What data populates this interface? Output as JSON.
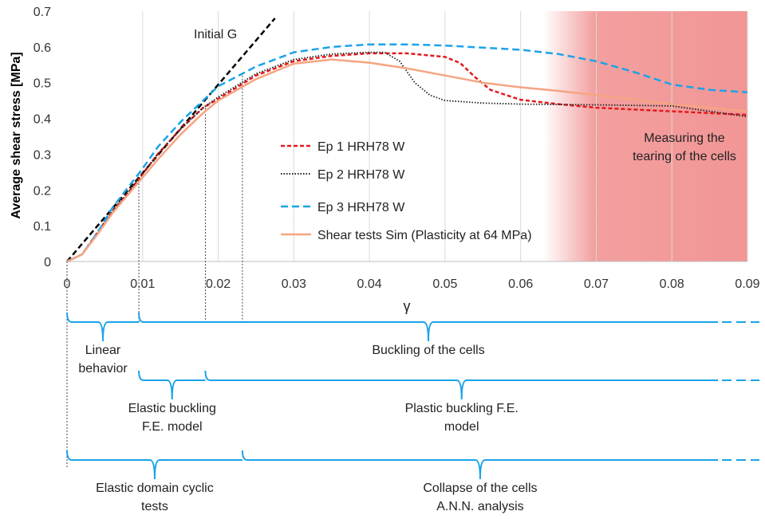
{
  "chart_data": {
    "type": "line",
    "title": "",
    "xlabel": "γ",
    "ylabel": "Average shear stress [MPa]",
    "xlim": [
      0,
      0.09
    ],
    "ylim": [
      0,
      0.7
    ],
    "xticks": [
      "0",
      "0.01",
      "0.02",
      "0.03",
      "0.04",
      "0.05",
      "0.06",
      "0.07",
      "0.08",
      "0.09"
    ],
    "yticks": [
      "0",
      "0.1",
      "0.2",
      "0.3",
      "0.4",
      "0.5",
      "0.6",
      "0.7"
    ],
    "grid": "vertical",
    "legend_position": "center",
    "series": [
      {
        "name": "Ep 1 HRH78 W",
        "color": "#e41a1c",
        "style": "dashed",
        "points": [
          [
            0,
            0
          ],
          [
            0.002,
            0.02
          ],
          [
            0.004,
            0.08
          ],
          [
            0.006,
            0.14
          ],
          [
            0.008,
            0.19
          ],
          [
            0.01,
            0.245
          ],
          [
            0.012,
            0.3
          ],
          [
            0.015,
            0.37
          ],
          [
            0.018,
            0.43
          ],
          [
            0.02,
            0.455
          ],
          [
            0.025,
            0.52
          ],
          [
            0.03,
            0.56
          ],
          [
            0.035,
            0.575
          ],
          [
            0.04,
            0.582
          ],
          [
            0.045,
            0.582
          ],
          [
            0.05,
            0.572
          ],
          [
            0.052,
            0.555
          ],
          [
            0.054,
            0.515
          ],
          [
            0.056,
            0.48
          ],
          [
            0.06,
            0.452
          ],
          [
            0.065,
            0.44
          ],
          [
            0.07,
            0.43
          ],
          [
            0.08,
            0.42
          ],
          [
            0.09,
            0.41
          ]
        ]
      },
      {
        "name": "Ep 2 HRH78 W",
        "color": "#222222",
        "style": "dotted",
        "points": [
          [
            0,
            0
          ],
          [
            0.002,
            0.02
          ],
          [
            0.004,
            0.08
          ],
          [
            0.006,
            0.14
          ],
          [
            0.008,
            0.19
          ],
          [
            0.01,
            0.245
          ],
          [
            0.012,
            0.3
          ],
          [
            0.015,
            0.37
          ],
          [
            0.018,
            0.43
          ],
          [
            0.02,
            0.46
          ],
          [
            0.025,
            0.525
          ],
          [
            0.03,
            0.565
          ],
          [
            0.035,
            0.58
          ],
          [
            0.04,
            0.585
          ],
          [
            0.042,
            0.585
          ],
          [
            0.044,
            0.56
          ],
          [
            0.046,
            0.5
          ],
          [
            0.048,
            0.465
          ],
          [
            0.05,
            0.45
          ],
          [
            0.055,
            0.443
          ],
          [
            0.06,
            0.44
          ],
          [
            0.07,
            0.438
          ],
          [
            0.08,
            0.435
          ],
          [
            0.09,
            0.405
          ]
        ]
      },
      {
        "name": "Ep 3 HRH78 W",
        "color": "#1aa3e8",
        "style": "longdash",
        "points": [
          [
            0,
            0
          ],
          [
            0.002,
            0.02
          ],
          [
            0.004,
            0.08
          ],
          [
            0.006,
            0.15
          ],
          [
            0.008,
            0.205
          ],
          [
            0.01,
            0.26
          ],
          [
            0.012,
            0.32
          ],
          [
            0.015,
            0.39
          ],
          [
            0.018,
            0.45
          ],
          [
            0.02,
            0.49
          ],
          [
            0.025,
            0.545
          ],
          [
            0.03,
            0.585
          ],
          [
            0.035,
            0.6
          ],
          [
            0.04,
            0.607
          ],
          [
            0.045,
            0.607
          ],
          [
            0.05,
            0.604
          ],
          [
            0.055,
            0.598
          ],
          [
            0.06,
            0.592
          ],
          [
            0.065,
            0.58
          ],
          [
            0.07,
            0.56
          ],
          [
            0.075,
            0.53
          ],
          [
            0.08,
            0.495
          ],
          [
            0.085,
            0.48
          ],
          [
            0.09,
            0.473
          ]
        ]
      },
      {
        "name": "Shear tests Sim (Plasticity at 64 MPa)",
        "color": "#f4a582",
        "style": "solid",
        "points": [
          [
            0,
            0
          ],
          [
            0.002,
            0.02
          ],
          [
            0.004,
            0.075
          ],
          [
            0.006,
            0.135
          ],
          [
            0.008,
            0.185
          ],
          [
            0.01,
            0.235
          ],
          [
            0.012,
            0.285
          ],
          [
            0.015,
            0.355
          ],
          [
            0.018,
            0.415
          ],
          [
            0.02,
            0.45
          ],
          [
            0.025,
            0.51
          ],
          [
            0.03,
            0.553
          ],
          [
            0.035,
            0.565
          ],
          [
            0.04,
            0.556
          ],
          [
            0.045,
            0.54
          ],
          [
            0.05,
            0.52
          ],
          [
            0.055,
            0.5
          ],
          [
            0.06,
            0.487
          ],
          [
            0.065,
            0.477
          ],
          [
            0.07,
            0.465
          ],
          [
            0.08,
            0.44
          ],
          [
            0.09,
            0.42
          ]
        ]
      }
    ],
    "reference_line": {
      "label": "Initial G",
      "color": "#000000",
      "style": "dashed",
      "points": [
        [
          0,
          0
        ],
        [
          0.0275,
          0.68
        ]
      ]
    },
    "shaded_region": {
      "x_start": 0.063,
      "x_end": 0.09,
      "color": "#f29595",
      "label_lines": [
        "Measuring the",
        "tearing of the cells"
      ]
    },
    "annotations": [
      {
        "label_lines": [
          "Linear",
          "behavior"
        ],
        "x_from": 0,
        "x_to": 0.0095
      },
      {
        "label_lines": [
          "Buckling of the cells"
        ],
        "x_from": 0.0095,
        "x_to": 0.09
      },
      {
        "label_lines": [
          "Elastic buckling",
          "F.E. model"
        ],
        "x_from": 0.0095,
        "x_to": 0.0183
      },
      {
        "label_lines": [
          "Plastic buckling F.E.",
          "model"
        ],
        "x_from": 0.0183,
        "x_to": 0.09
      },
      {
        "label_lines": [
          "Elastic domain cyclic",
          "tests"
        ],
        "x_from": 0,
        "x_to": 0.0232
      },
      {
        "label_lines": [
          "Collapse of the cells",
          "A.N.N. analysis"
        ],
        "x_from": 0.0232,
        "x_to": 0.09
      }
    ]
  }
}
